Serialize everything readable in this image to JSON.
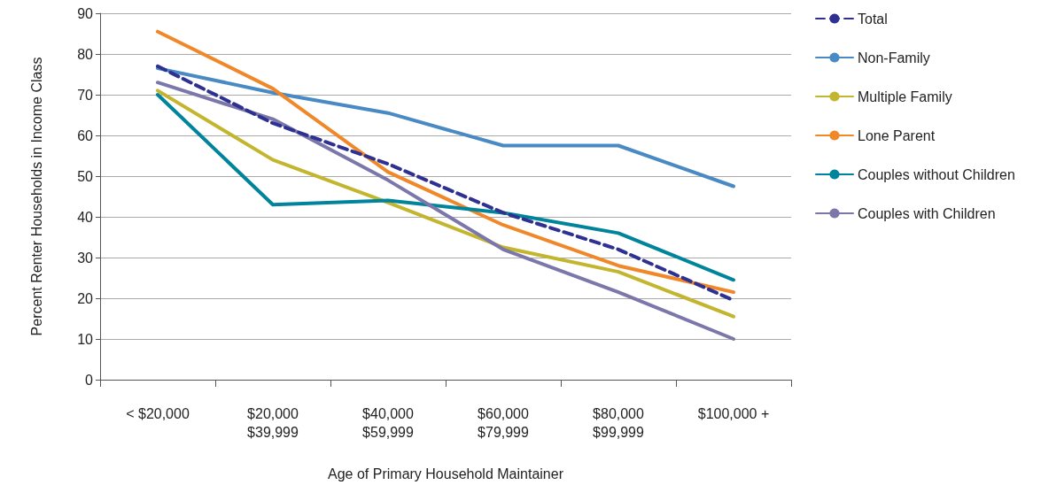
{
  "chart_data": {
    "type": "line",
    "xlabel": "Age of Primary Household Maintainer",
    "ylabel": "Percent Renter Households in Income Class",
    "categories": [
      "< $20,000",
      "$20,000\n$39,999",
      "$40,000\n$59,999",
      "$60,000\n$79,999",
      "$80,000\n$99,999",
      "$100,000 +"
    ],
    "series": [
      {
        "name": "Total",
        "color": "#2e3192",
        "line_style": "dashed",
        "values": [
          77,
          63,
          53,
          41,
          32,
          19.5
        ]
      },
      {
        "name": "Non-Family",
        "color": "#4a8ac4",
        "values": [
          76.5,
          70.5,
          65.5,
          57.5,
          57.5,
          47.5
        ]
      },
      {
        "name": "Multiple Family",
        "color": "#c3b52e",
        "values": [
          71,
          54,
          43.5,
          32.5,
          26.5,
          15.5
        ]
      },
      {
        "name": "Lone Parent",
        "color": "#f0882a",
        "values": [
          85.5,
          71.5,
          51,
          38,
          28,
          21.5
        ]
      },
      {
        "name": "Couples without Children",
        "color": "#00849c",
        "values": [
          70,
          43,
          44,
          41,
          36,
          24.5
        ]
      },
      {
        "name": "Couples with Children",
        "color": "#7b77ab",
        "values": [
          73,
          64,
          49,
          32,
          21.5,
          10
        ]
      }
    ],
    "ylim": [
      0,
      90
    ],
    "yticks": [
      0,
      10,
      20,
      30,
      40,
      50,
      60,
      70,
      80,
      90
    ],
    "grid": "y",
    "legend": "top right",
    "marker": "none",
    "line_style": "solid"
  }
}
